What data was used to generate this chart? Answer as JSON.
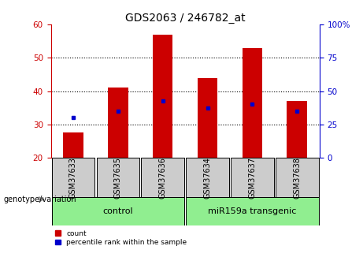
{
  "title": "GDS2063 / 246782_at",
  "categories": [
    "GSM37633",
    "GSM37635",
    "GSM37636",
    "GSM37634",
    "GSM37637",
    "GSM37638"
  ],
  "bar_bottoms": [
    20,
    20,
    20,
    20,
    20,
    20
  ],
  "bar_tops": [
    27.5,
    41.0,
    57.0,
    44.0,
    53.0,
    37.0
  ],
  "percentile_ranks": [
    32.0,
    34.0,
    37.0,
    35.0,
    36.0,
    34.0
  ],
  "ylim_left": [
    20,
    60
  ],
  "ylim_right": [
    0,
    100
  ],
  "yticks_left": [
    20,
    30,
    40,
    50,
    60
  ],
  "yticks_right": [
    0,
    25,
    50,
    75,
    100
  ],
  "ytick_labels_right": [
    "0",
    "25",
    "50",
    "75",
    "100%"
  ],
  "bar_color": "#cc0000",
  "dot_color": "#0000cc",
  "bar_width": 0.45,
  "groups": [
    {
      "label": "control",
      "span": [
        0,
        2
      ],
      "color": "#90ee90"
    },
    {
      "label": "miR159a transgenic",
      "span": [
        3,
        5
      ],
      "color": "#90ee90"
    }
  ],
  "genotype_label": "genotype/variation",
  "legend_items": [
    {
      "label": "count",
      "color": "#cc0000"
    },
    {
      "label": "percentile rank within the sample",
      "color": "#0000cc"
    }
  ],
  "background_color": "#ffffff",
  "plot_bg_color": "#ffffff",
  "title_fontsize": 10,
  "tick_fontsize": 7.5,
  "cat_fontsize": 7,
  "group_fontsize": 8
}
